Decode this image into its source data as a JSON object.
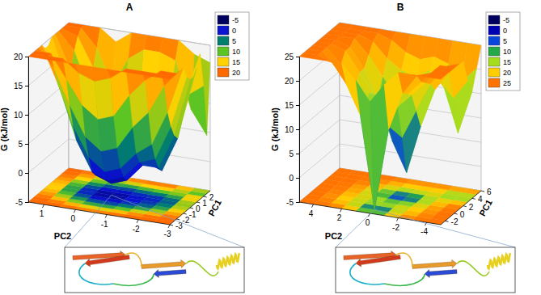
{
  "chart_data": [
    {
      "type": "surface3d",
      "title": "A",
      "x_label": "PC2",
      "y_label": "PC1",
      "z_label": "G (kJ/mol)",
      "x": [
        1.5,
        1,
        0.5,
        0,
        -0.5,
        -1,
        -1.5,
        -2,
        -2.5,
        -3
      ],
      "y": [
        -3,
        -2.5,
        -2,
        -1.5,
        -1,
        -0.5,
        0,
        0.5,
        1,
        1.5,
        2,
        2.5,
        3
      ],
      "z": [
        [
          20,
          20,
          20,
          20,
          20,
          20,
          20,
          20,
          20,
          20
        ],
        [
          20,
          20,
          20,
          18,
          17,
          18,
          20,
          20,
          20,
          20
        ],
        [
          20,
          20,
          16,
          12,
          10,
          11,
          15,
          18,
          20,
          20
        ],
        [
          20,
          17,
          11,
          6,
          4,
          5,
          9,
          12,
          17,
          20
        ],
        [
          20,
          14,
          7,
          2,
          0,
          1,
          4,
          6,
          12,
          20
        ],
        [
          19,
          12,
          4,
          -1,
          -2,
          -1,
          2,
          3,
          9,
          18
        ],
        [
          19,
          11,
          3,
          -2,
          -3,
          -2,
          1,
          1,
          7,
          17
        ],
        [
          20,
          12,
          4,
          -1,
          -2,
          -1,
          1,
          0,
          6,
          17
        ],
        [
          20,
          14,
          6,
          2,
          0,
          1,
          3,
          2,
          8,
          18
        ],
        [
          20,
          17,
          10,
          6,
          4,
          5,
          7,
          7,
          12,
          20
        ],
        [
          20,
          19,
          14,
          12,
          10,
          11,
          13,
          13,
          12,
          14
        ],
        [
          20,
          20,
          17,
          11,
          16,
          18,
          18,
          17,
          9,
          5
        ],
        [
          20,
          20,
          20,
          18,
          20,
          20,
          20,
          20,
          18,
          17
        ]
      ],
      "xlim": [
        1.5,
        -3
      ],
      "xticks": [
        1,
        0,
        -1,
        -2,
        -3
      ],
      "ylim": [
        -3,
        3
      ],
      "yticks": [
        -3,
        -2,
        -1,
        0,
        1,
        2
      ],
      "zlim": [
        -5,
        20
      ],
      "zticks": [
        -5,
        0,
        5,
        10,
        15,
        20
      ],
      "colorbar": {
        "levels": [
          -5,
          0,
          5,
          10,
          15,
          20
        ],
        "colors": [
          "#00005e",
          "#0a14d2",
          "#007f6e",
          "#5cc423",
          "#ffd200",
          "#ff6a00"
        ]
      },
      "grid": true
    },
    {
      "type": "surface3d",
      "title": "B",
      "x_label": "PC2",
      "y_label": "PC1",
      "z_label": "G (kJ/mol)",
      "x": [
        5,
        4,
        3,
        2,
        1,
        0,
        -1,
        -2,
        -3,
        -4,
        -5
      ],
      "y": [
        -3,
        -2,
        -1,
        0,
        1,
        2,
        3,
        4,
        5,
        6
      ],
      "z": [
        [
          25,
          25,
          25,
          25,
          22,
          18,
          22,
          25,
          25,
          25,
          25
        ],
        [
          25,
          25,
          24,
          20,
          14,
          -5,
          12,
          20,
          24,
          25,
          25
        ],
        [
          25,
          25,
          22,
          18,
          15,
          10,
          16,
          19,
          22,
          25,
          25
        ],
        [
          25,
          25,
          22,
          18,
          17,
          16,
          15,
          18,
          21,
          25,
          25
        ],
        [
          25,
          25,
          24,
          20,
          16,
          10,
          8,
          14,
          20,
          24,
          25
        ],
        [
          25,
          25,
          24,
          20,
          14,
          6,
          0,
          10,
          18,
          22,
          25
        ],
        [
          25,
          25,
          25,
          22,
          18,
          14,
          12,
          16,
          19,
          16,
          20
        ],
        [
          25,
          25,
          25,
          24,
          21,
          19,
          18,
          20,
          17,
          8,
          17
        ],
        [
          25,
          25,
          25,
          25,
          24,
          22,
          21,
          22,
          21,
          18,
          21
        ],
        [
          25,
          25,
          25,
          25,
          25,
          25,
          25,
          25,
          25,
          25,
          25
        ]
      ],
      "xlim": [
        5,
        -5
      ],
      "xticks": [
        4,
        2,
        0,
        -2,
        -4
      ],
      "ylim": [
        -3,
        6
      ],
      "yticks": [
        -2,
        0,
        2,
        4,
        6
      ],
      "zlim": [
        -5,
        25
      ],
      "zticks": [
        -5,
        0,
        5,
        10,
        15,
        20,
        25
      ],
      "colorbar": {
        "levels": [
          -5,
          0,
          5,
          10,
          15,
          20,
          25
        ],
        "colors": [
          "#00005e",
          "#0000b4",
          "#0a46dc",
          "#23aa46",
          "#a5dc1e",
          "#ffcd00",
          "#ff7300"
        ]
      },
      "grid": true
    }
  ]
}
